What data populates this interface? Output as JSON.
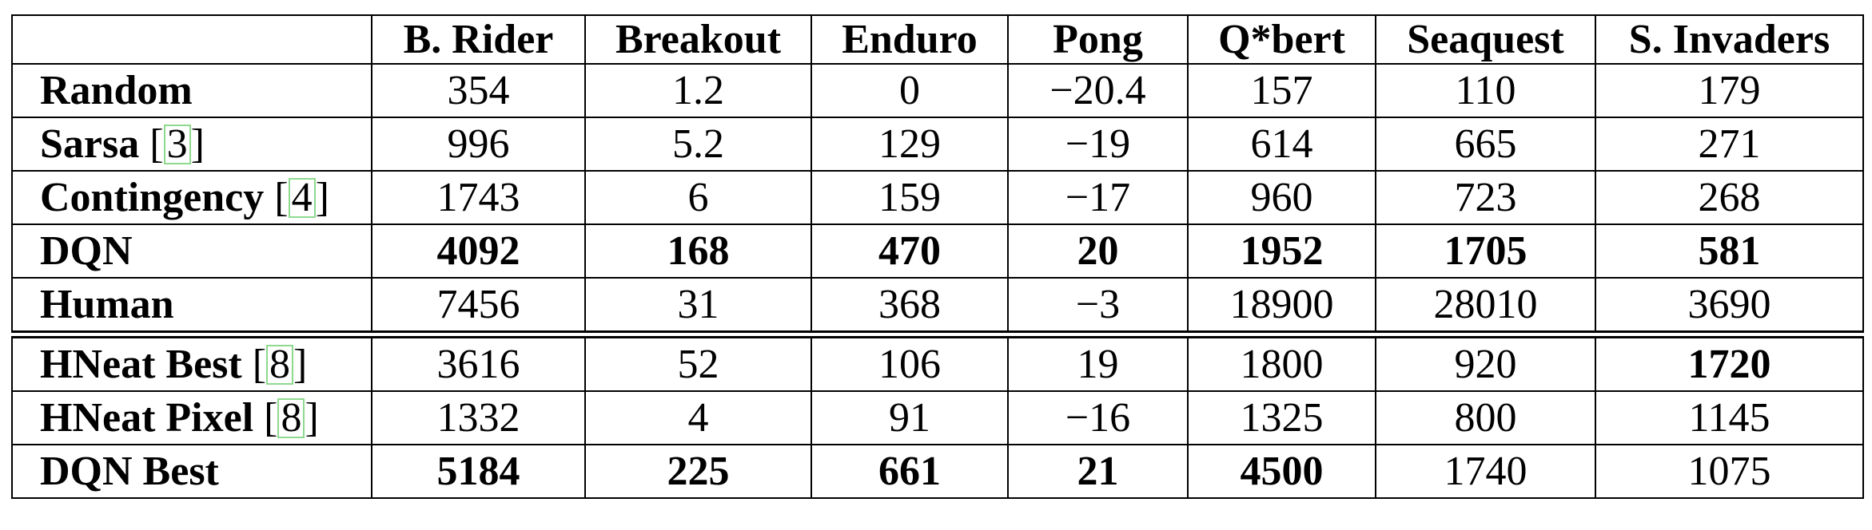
{
  "table": {
    "headers": [
      "",
      "B. Rider",
      "Breakout",
      "Enduro",
      "Pong",
      "Q*bert",
      "Seaquest",
      "S. Invaders"
    ],
    "rows": [
      {
        "label": "Random",
        "cite": "",
        "values": [
          "354",
          "1.2",
          "0",
          "−20.4",
          "157",
          "110",
          "179"
        ],
        "bold": [
          false,
          false,
          false,
          false,
          false,
          false,
          false
        ]
      },
      {
        "label": "Sarsa",
        "cite": "3",
        "values": [
          "996",
          "5.2",
          "129",
          "−19",
          "614",
          "665",
          "271"
        ],
        "bold": [
          false,
          false,
          false,
          false,
          false,
          false,
          false
        ]
      },
      {
        "label": "Contingency",
        "cite": "4",
        "values": [
          "1743",
          "6",
          "159",
          "−17",
          "960",
          "723",
          "268"
        ],
        "bold": [
          false,
          false,
          false,
          false,
          false,
          false,
          false
        ]
      },
      {
        "label": "DQN",
        "cite": "",
        "values": [
          "4092",
          "168",
          "470",
          "20",
          "1952",
          "1705",
          "581"
        ],
        "bold": [
          true,
          true,
          true,
          true,
          true,
          true,
          true
        ]
      },
      {
        "label": "Human",
        "cite": "",
        "values": [
          "7456",
          "31",
          "368",
          "−3",
          "18900",
          "28010",
          "3690"
        ],
        "bold": [
          false,
          false,
          false,
          false,
          false,
          false,
          false
        ]
      },
      {
        "label": "HNeat Best",
        "cite": "8",
        "values": [
          "3616",
          "52",
          "106",
          "19",
          "1800",
          "920",
          "1720"
        ],
        "bold": [
          false,
          false,
          false,
          false,
          false,
          false,
          true
        ]
      },
      {
        "label": "HNeat Pixel",
        "cite": "8",
        "values": [
          "1332",
          "4",
          "91",
          "−16",
          "1325",
          "800",
          "1145"
        ],
        "bold": [
          false,
          false,
          false,
          false,
          false,
          false,
          false
        ]
      },
      {
        "label": "DQN Best",
        "cite": "",
        "values": [
          "5184",
          "225",
          "661",
          "21",
          "4500",
          "1740",
          "1075"
        ],
        "bold": [
          true,
          true,
          true,
          true,
          true,
          false,
          false
        ]
      }
    ]
  }
}
